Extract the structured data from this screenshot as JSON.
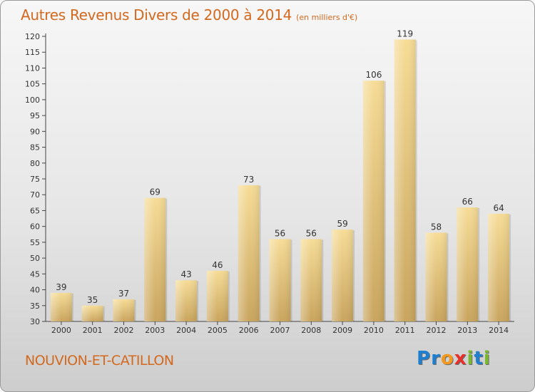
{
  "title": "Autres Revenus Divers de 2000 à 2014",
  "subtitle": "(en milliers d'€)",
  "commune": "NOUVION-ET-CATILLON",
  "logo": {
    "letters": [
      {
        "ch": "P",
        "color": "#1e7fd0"
      },
      {
        "ch": "r",
        "color": "#1e7fd0"
      },
      {
        "ch": "o",
        "color": "#f39a1e"
      },
      {
        "ch": "x",
        "color": "#e8302a"
      },
      {
        "ch": "i",
        "color": "#7ab82d"
      },
      {
        "ch": "t",
        "color": "#1e7fd0"
      },
      {
        "ch": "i",
        "color": "#7ab82d"
      }
    ]
  },
  "chart_data": {
    "type": "bar",
    "categories": [
      "2000",
      "2001",
      "2002",
      "2003",
      "2004",
      "2005",
      "2006",
      "2007",
      "2008",
      "2009",
      "2010",
      "2011",
      "2012",
      "2013",
      "2014"
    ],
    "values": [
      39,
      35,
      37,
      69,
      43,
      46,
      73,
      56,
      56,
      59,
      106,
      119,
      58,
      66,
      64
    ],
    "ylim": [
      30,
      120
    ],
    "yticks": [
      30,
      35,
      40,
      45,
      50,
      55,
      60,
      65,
      70,
      75,
      80,
      85,
      90,
      95,
      100,
      105,
      110,
      115,
      120
    ],
    "grid": false,
    "bar_color": "#e8c878"
  }
}
